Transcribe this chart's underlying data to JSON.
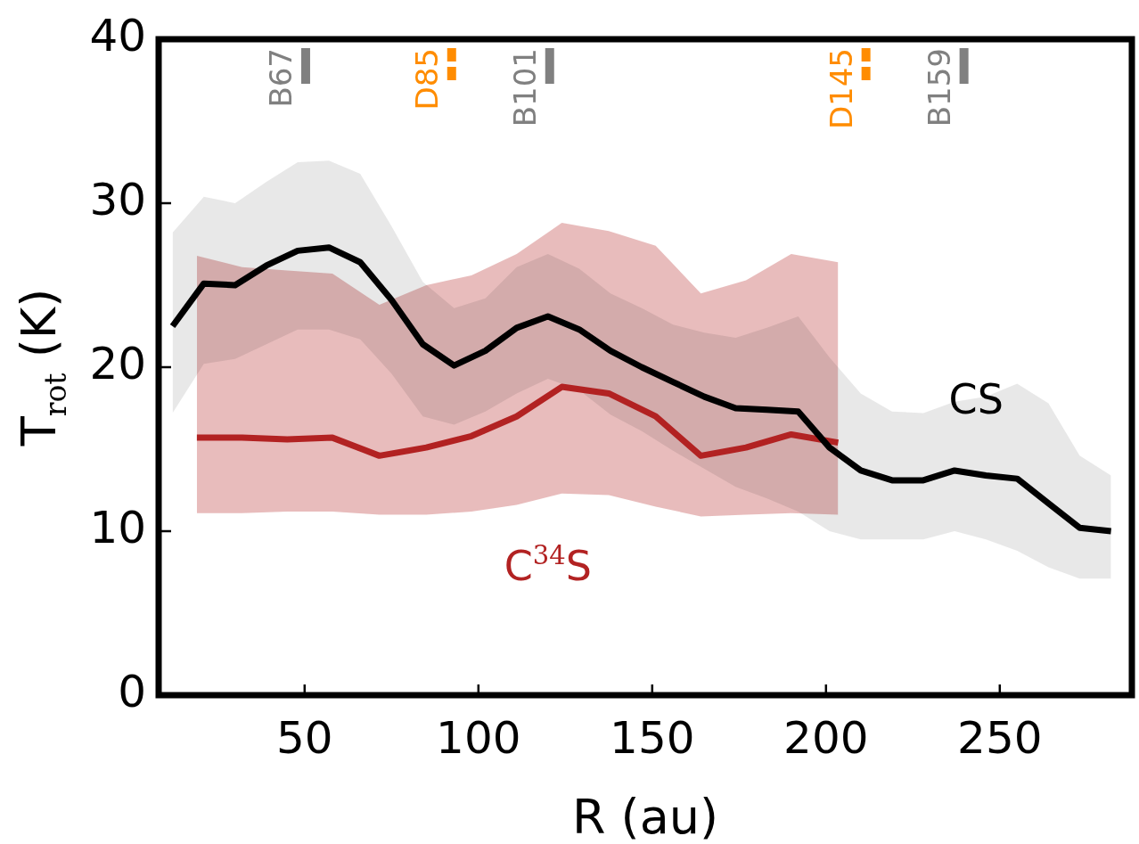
{
  "chart_data": {
    "type": "line",
    "xlabel": "R (au)",
    "ylabel": "T$_{rot}$ (K)",
    "xlim": [
      8,
      288
    ],
    "xticks": [
      50,
      100,
      150,
      200,
      250
    ],
    "ylim": [
      0,
      40
    ],
    "yticks": [
      0,
      10,
      20,
      30,
      40
    ],
    "series": [
      {
        "name": "CS",
        "color": "#000000",
        "x": [
          12,
          21,
          30,
          39,
          48,
          57,
          66,
          75,
          84,
          93,
          102,
          111,
          120,
          129,
          138,
          147,
          156,
          165,
          174,
          183,
          192,
          201,
          210,
          219,
          228,
          237,
          246,
          255,
          264,
          273,
          282
        ],
        "values": [
          22.5,
          25.1,
          25.0,
          26.2,
          27.1,
          27.3,
          26.4,
          24.1,
          21.4,
          20.1,
          21.0,
          22.4,
          23.1,
          22.3,
          21.0,
          20.0,
          19.1,
          18.2,
          17.5,
          17.4,
          17.3,
          15.1,
          13.7,
          13.1,
          13.1,
          13.7,
          13.4,
          13.2,
          11.7,
          10.2,
          10.0
        ],
        "upper": [
          28.2,
          30.4,
          30.0,
          31.3,
          32.5,
          32.6,
          31.8,
          28.6,
          25.2,
          23.6,
          24.2,
          26.1,
          26.9,
          26.0,
          24.5,
          23.6,
          22.6,
          22.1,
          21.8,
          22.4,
          23.1,
          20.6,
          18.4,
          17.3,
          17.2,
          17.9,
          18.2,
          19.0,
          17.8,
          14.6,
          13.4
        ],
        "lower": [
          17.2,
          20.2,
          20.5,
          21.4,
          22.3,
          22.3,
          21.7,
          19.6,
          17.0,
          16.5,
          17.3,
          18.4,
          19.3,
          18.6,
          17.1,
          16.1,
          14.9,
          13.8,
          12.7,
          12.0,
          11.2,
          10.0,
          9.5,
          9.5,
          9.5,
          10.0,
          9.5,
          8.8,
          7.8,
          7.1,
          7.1
        ]
      },
      {
        "name": "C$^{34}$S",
        "color": "#b22222",
        "x": [
          19,
          32,
          45,
          58,
          71.5,
          85,
          98,
          111,
          124,
          137.5,
          151,
          164,
          177,
          190,
          203.5
        ],
        "values": [
          15.7,
          15.7,
          15.6,
          15.7,
          14.6,
          15.1,
          15.8,
          17.0,
          18.8,
          18.4,
          17.0,
          14.6,
          15.1,
          15.9,
          15.4
        ],
        "upper": [
          26.8,
          26.1,
          25.9,
          25.7,
          23.8,
          25.0,
          25.6,
          26.9,
          28.8,
          28.3,
          27.4,
          24.5,
          25.3,
          26.9,
          26.4
        ],
        "lower": [
          11.1,
          11.1,
          11.2,
          11.2,
          11.0,
          11.0,
          11.2,
          11.6,
          12.3,
          12.2,
          11.5,
          10.9,
          11.0,
          11.1,
          11.0
        ]
      }
    ],
    "ref_lines": [
      {
        "axis": "x",
        "value": 50.3,
        "label": "B67",
        "color": "#808080",
        "line_style": "solid"
      },
      {
        "axis": "x",
        "value": 92.3,
        "label": "D85",
        "color": "#ff8c00",
        "line_style": "dashed"
      },
      {
        "axis": "x",
        "value": 120.5,
        "label": "B101",
        "color": "#808080",
        "line_style": "solid"
      },
      {
        "axis": "x",
        "value": 211.5,
        "label": "D145",
        "color": "#ff8c00",
        "line_style": "dashed"
      },
      {
        "axis": "x",
        "value": 239.7,
        "label": "B159",
        "color": "#808080",
        "line_style": "solid"
      }
    ]
  }
}
